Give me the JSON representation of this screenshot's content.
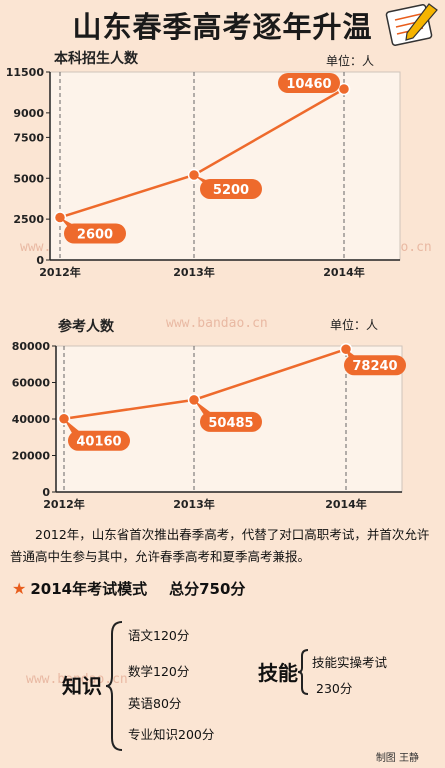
{
  "title": "山东春季高考逐年升温",
  "chart_data": [
    {
      "type": "line",
      "title": "本科招生人数",
      "unit": "单位：人",
      "categories": [
        "2012年",
        "2013年",
        "2014年"
      ],
      "values": [
        2600,
        5200,
        10460
      ],
      "ylim": [
        0,
        11500
      ],
      "yticks": [
        0,
        2500,
        5000,
        7500,
        9000,
        11500
      ],
      "grid": "vertical dashed",
      "color": "#ee6a2c"
    },
    {
      "type": "line",
      "title": "参考人数",
      "unit": "单位：人",
      "categories": [
        "2012年",
        "2013年",
        "2014年"
      ],
      "values": [
        40160,
        50485,
        78240
      ],
      "ylim": [
        0,
        80000
      ],
      "yticks": [
        0,
        20000,
        40000,
        60000,
        80000
      ],
      "grid": "vertical dashed",
      "color": "#ee6a2c"
    }
  ],
  "description": "2012年，山东省首次推出春季高考，代替了对口高职考试，并首次允许普通高中生参与其中，允许春季高考和夏季高考兼报。",
  "mode": {
    "label": "2014年考试模式",
    "total": "总分750分",
    "knowledge": {
      "label": "知识",
      "items": [
        "语文120分",
        "数学120分",
        "英语80分",
        "专业知识200分"
      ]
    },
    "skill": {
      "label": "技能",
      "items": [
        "技能实操考试",
        "230分"
      ]
    }
  },
  "credit": "制图 王静",
  "watermark_text": "www.bandao.cn",
  "accent_color": "#ee6a2c"
}
